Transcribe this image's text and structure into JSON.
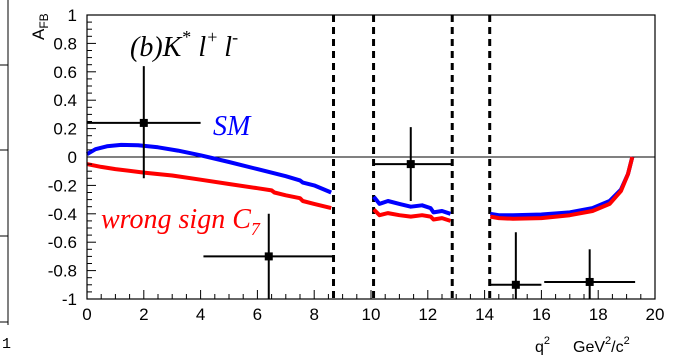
{
  "chart_data": {
    "type": "scatter",
    "panel_label": "(b)",
    "particle": "K",
    "particle_sup": "*",
    "lepton": "l",
    "lepton_plus": "+",
    "lepton_minus": "-",
    "ylabel_main": "A",
    "ylabel_sub": "FB",
    "xlabel_q": "q",
    "xlabel_q_sup": "2",
    "xlabel_units": "GeV",
    "xlabel_units_sup": "2",
    "xlabel_units_den": "/c",
    "xlabel_units_den_sup": "2",
    "xlim": [
      0,
      20
    ],
    "ylim": [
      -1,
      1
    ],
    "x_ticks": [
      "0",
      "2",
      "4",
      "6",
      "8",
      "10",
      "12",
      "14",
      "16",
      "18",
      "20"
    ],
    "y_ticks": [
      "1",
      "0.8",
      "0.6",
      "0.4",
      "0.2",
      "0",
      "-0.2",
      "-0.4",
      "-0.6",
      "-0.8",
      "-1"
    ],
    "reference_line_y": 0,
    "vetoed_region_boundaries": [
      8.68,
      10.09,
      12.86,
      14.18
    ],
    "data_points": [
      {
        "x": 2.0,
        "y": 0.24,
        "x_err": [
          2.0,
          2.0
        ],
        "y_err": [
          0.39,
          0.4
        ]
      },
      {
        "x": 6.4,
        "y": -0.7,
        "x_err": [
          2.3,
          2.3
        ],
        "y_err": [
          0.3,
          0.3
        ]
      },
      {
        "x": 11.4,
        "y": -0.05,
        "x_err": [
          1.3,
          1.45
        ],
        "y_err": [
          0.26,
          0.26
        ]
      },
      {
        "x": 15.1,
        "y": -0.9,
        "x_err": [
          0.9,
          0.9
        ],
        "y_err": [
          0.1,
          0.37
        ]
      },
      {
        "x": 17.7,
        "y": -0.88,
        "x_err": [
          1.6,
          1.6
        ],
        "y_err": [
          0.12,
          0.23
        ]
      }
    ],
    "series": [
      {
        "name": "SM",
        "color": "#0000ff",
        "segments": [
          [
            [
              0,
              0.02
            ],
            [
              0.3,
              0.055
            ],
            [
              0.7,
              0.075
            ],
            [
              1.2,
              0.085
            ],
            [
              1.8,
              0.083
            ],
            [
              2.5,
              0.068
            ],
            [
              3.2,
              0.045
            ],
            [
              4,
              0.012
            ],
            [
              5,
              -0.035
            ],
            [
              6,
              -0.085
            ],
            [
              7,
              -0.135
            ],
            [
              7.5,
              -0.165
            ],
            [
              7.6,
              -0.18
            ],
            [
              8,
              -0.2
            ],
            [
              8.6,
              -0.25
            ]
          ],
          [
            [
              10.1,
              -0.28
            ],
            [
              10.3,
              -0.33
            ],
            [
              10.6,
              -0.31
            ],
            [
              11,
              -0.33
            ],
            [
              11.4,
              -0.35
            ],
            [
              11.8,
              -0.34
            ],
            [
              12.1,
              -0.36
            ],
            [
              12.2,
              -0.39
            ],
            [
              12.5,
              -0.38
            ],
            [
              12.8,
              -0.4
            ]
          ],
          [
            [
              14.2,
              -0.4
            ],
            [
              14.5,
              -0.41
            ],
            [
              15,
              -0.41
            ],
            [
              16,
              -0.405
            ],
            [
              17,
              -0.39
            ],
            [
              17.8,
              -0.36
            ],
            [
              18.4,
              -0.31
            ],
            [
              18.8,
              -0.23
            ],
            [
              19.05,
              -0.12
            ],
            [
              19.2,
              0.0
            ]
          ]
        ]
      },
      {
        "name": "wrong sign C",
        "name_sub": "7",
        "color": "#ff0000",
        "segments": [
          [
            [
              0,
              -0.05
            ],
            [
              0.5,
              -0.07
            ],
            [
              1,
              -0.085
            ],
            [
              2,
              -0.11
            ],
            [
              3,
              -0.13
            ],
            [
              4,
              -0.16
            ],
            [
              5,
              -0.19
            ],
            [
              6,
              -0.22
            ],
            [
              6.5,
              -0.235
            ],
            [
              6.6,
              -0.25
            ],
            [
              7,
              -0.27
            ],
            [
              7.5,
              -0.29
            ],
            [
              7.6,
              -0.31
            ],
            [
              8,
              -0.33
            ],
            [
              8.6,
              -0.36
            ]
          ],
          [
            [
              10.1,
              -0.37
            ],
            [
              10.3,
              -0.41
            ],
            [
              10.6,
              -0.395
            ],
            [
              11,
              -0.41
            ],
            [
              11.4,
              -0.42
            ],
            [
              11.8,
              -0.41
            ],
            [
              12.1,
              -0.42
            ],
            [
              12.2,
              -0.44
            ],
            [
              12.5,
              -0.43
            ],
            [
              12.8,
              -0.45
            ]
          ],
          [
            [
              14.2,
              -0.42
            ],
            [
              14.5,
              -0.43
            ],
            [
              15,
              -0.435
            ],
            [
              16,
              -0.43
            ],
            [
              17,
              -0.41
            ],
            [
              17.8,
              -0.38
            ],
            [
              18.4,
              -0.33
            ],
            [
              18.8,
              -0.24
            ],
            [
              19.05,
              -0.12
            ],
            [
              19.2,
              0.0
            ]
          ]
        ]
      }
    ],
    "left_edge_tick_label": "1"
  }
}
